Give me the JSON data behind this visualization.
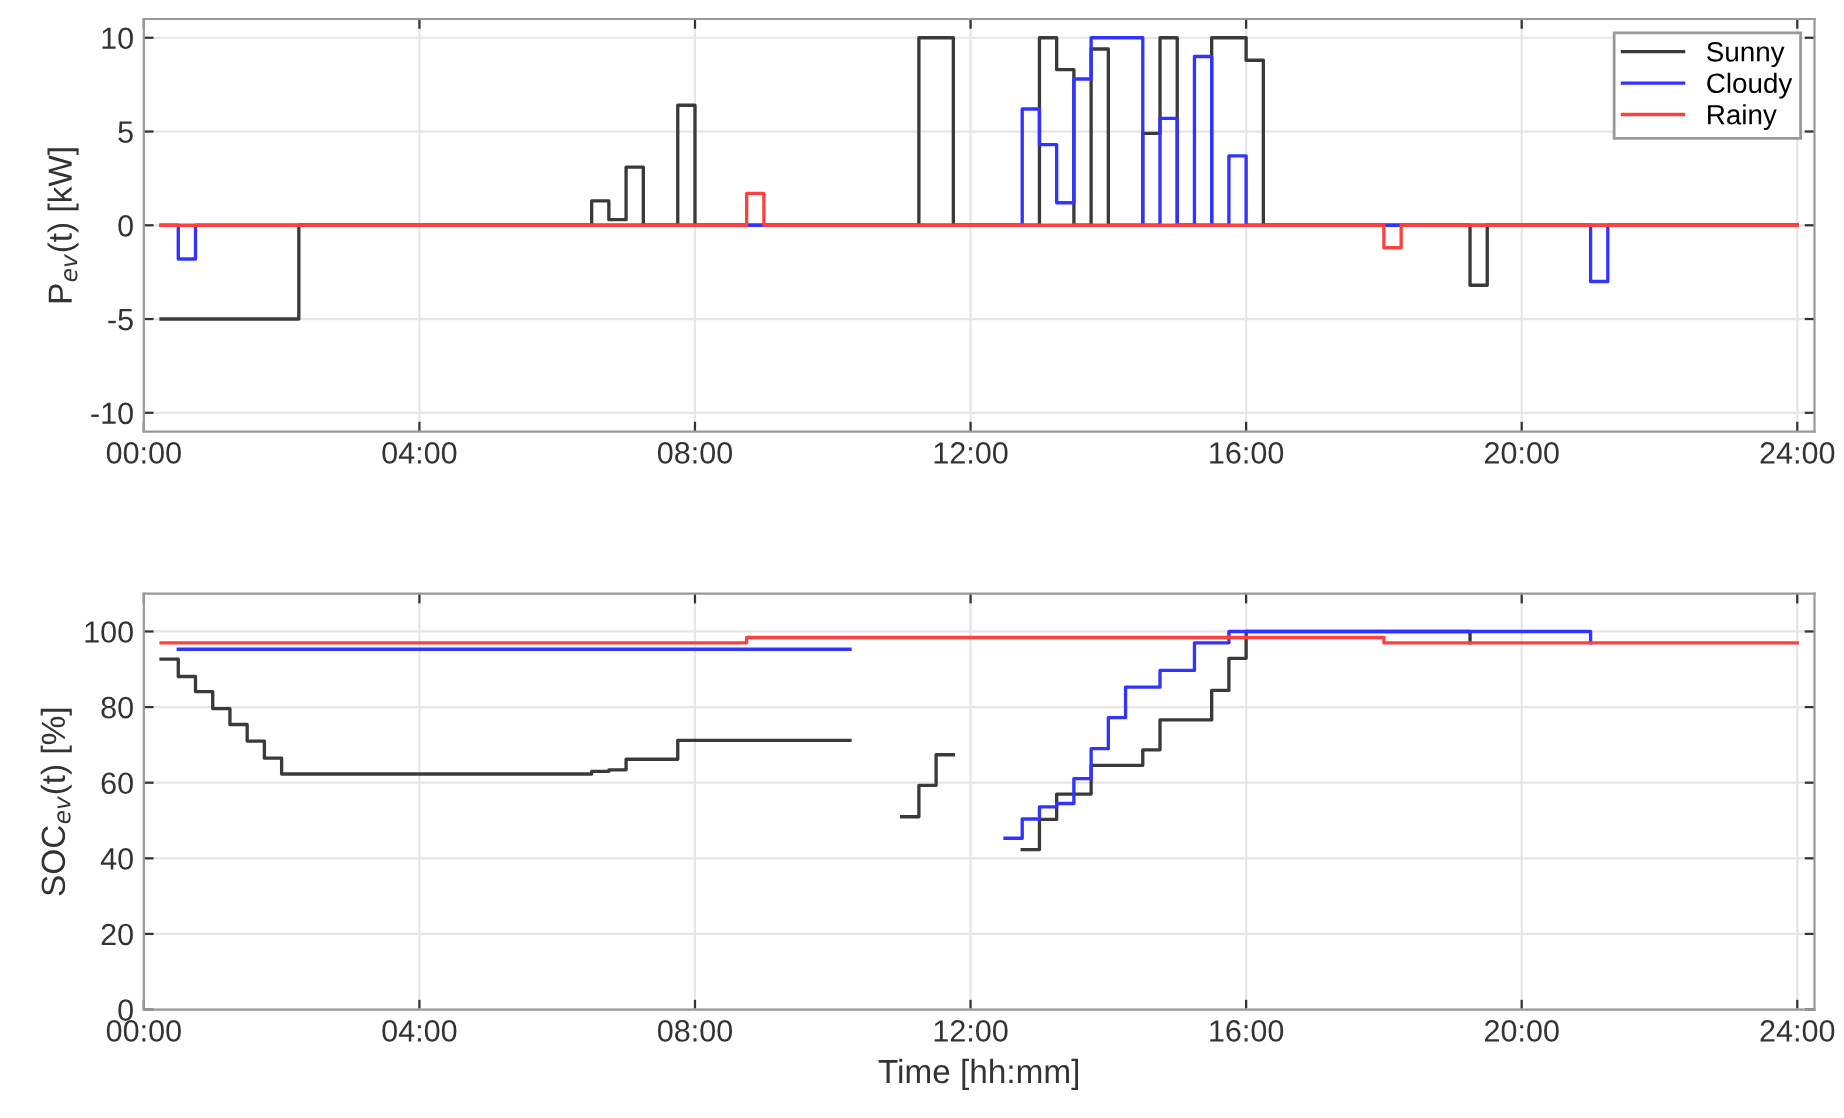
{
  "chart_data": [
    {
      "type": "step",
      "ylabel": "P$_{ev}$(t) [kW]",
      "xlim": [
        0,
        24.25
      ],
      "ylim": [
        -11,
        11
      ],
      "xticks": [
        {
          "value": 0,
          "label": "00:00"
        },
        {
          "value": 4,
          "label": "04:00"
        },
        {
          "value": 8,
          "label": "08:00"
        },
        {
          "value": 12,
          "label": "12:00"
        },
        {
          "value": 16,
          "label": "16:00"
        },
        {
          "value": 20,
          "label": "20:00"
        },
        {
          "value": 24,
          "label": "24:00"
        }
      ],
      "yticks": [
        -10,
        -5,
        0,
        5,
        10
      ],
      "grid": true,
      "legend": "top right",
      "series": [
        {
          "name": "Sunny",
          "color": "#3a3a3a",
          "x": [
            0.25,
            2.25,
            6.5,
            6.75,
            7.0,
            7.25,
            7.75,
            8.0,
            11.25,
            11.75,
            13.0,
            13.25,
            13.5,
            13.75,
            14.0,
            14.5,
            14.75,
            15.0,
            15.5,
            16.0,
            16.25,
            19.25,
            19.5,
            24.0
          ],
          "values": [
            -5,
            0,
            1.3,
            0.3,
            3.1,
            0,
            6.4,
            0,
            10,
            0,
            10,
            8.3,
            0,
            9.4,
            0,
            4.9,
            10,
            0,
            10,
            8.8,
            0,
            -3.2,
            0,
            0
          ]
        },
        {
          "name": "Cloudy",
          "color": "#3333ff",
          "x": [
            0.25,
            0.5,
            0.75,
            12.75,
            13.0,
            13.25,
            13.5,
            13.75,
            14.5,
            14.75,
            15.0,
            15.25,
            15.5,
            15.75,
            16.0,
            21.0,
            21.25,
            24.0
          ],
          "values": [
            0,
            -1.8,
            0,
            6.2,
            4.3,
            1.2,
            7.8,
            10,
            0,
            5.7,
            0,
            9.0,
            0,
            3.7,
            0,
            -3.0,
            0,
            0
          ]
        },
        {
          "name": "Rainy",
          "color": "#ff4040",
          "x": [
            0.25,
            8.75,
            9.0,
            18.0,
            18.25,
            24.0
          ],
          "values": [
            0,
            1.7,
            0,
            -1.2,
            0,
            0
          ]
        }
      ]
    },
    {
      "type": "step",
      "xlabel": "Time [hh:mm]",
      "ylabel": "SOC$_{ev}$(t) [%]",
      "xlim": [
        0,
        24.25
      ],
      "ylim": [
        0,
        110
      ],
      "xticks": [
        {
          "value": 0,
          "label": "00:00"
        },
        {
          "value": 4,
          "label": "04:00"
        },
        {
          "value": 8,
          "label": "08:00"
        },
        {
          "value": 12,
          "label": "12:00"
        },
        {
          "value": 16,
          "label": "16:00"
        },
        {
          "value": 20,
          "label": "20:00"
        },
        {
          "value": 24,
          "label": "24:00"
        }
      ],
      "yticks": [
        0,
        20,
        40,
        60,
        80,
        100
      ],
      "grid": true,
      "series": [
        {
          "color": "#3a3a3a",
          "x": [
            0.25,
            0.5,
            0.75,
            1.0,
            1.25,
            1.5,
            1.75,
            2.0,
            6.5,
            6.75,
            7.0,
            7.75,
            10.25,
            11.0,
            11.25,
            11.5,
            11.75,
            12.75,
            13.0,
            13.25,
            13.75,
            14.5,
            14.75,
            15.5,
            15.75,
            16.0,
            19.25
          ],
          "values": [
            92.7,
            88.1,
            84.1,
            79.6,
            75.4,
            71.0,
            66.5,
            62.3,
            63.0,
            63.4,
            66.2,
            71.2,
            null,
            51.0,
            59.3,
            67.4,
            null,
            42.3,
            50.3,
            57.0,
            64.6,
            68.7,
            76.6,
            84.4,
            92.9,
            100,
            97
          ]
        },
        {
          "color": "#3333ff",
          "x": [
            0.5,
            10.25,
            12.5,
            12.75,
            13.0,
            13.25,
            13.5,
            13.75,
            14.0,
            14.25,
            14.75,
            15.25,
            15.75,
            21.0
          ],
          "values": [
            95.3,
            null,
            45.3,
            50.4,
            53.6,
            54.5,
            61.1,
            69.0,
            77.2,
            85.3,
            89.7,
            97.0,
            100,
            97
          ]
        },
        {
          "color": "#ff4040",
          "x": [
            0.25,
            8.75,
            18.0,
            24.0
          ],
          "values": [
            97.0,
            98.4,
            97.0,
            97.0
          ]
        }
      ]
    }
  ]
}
